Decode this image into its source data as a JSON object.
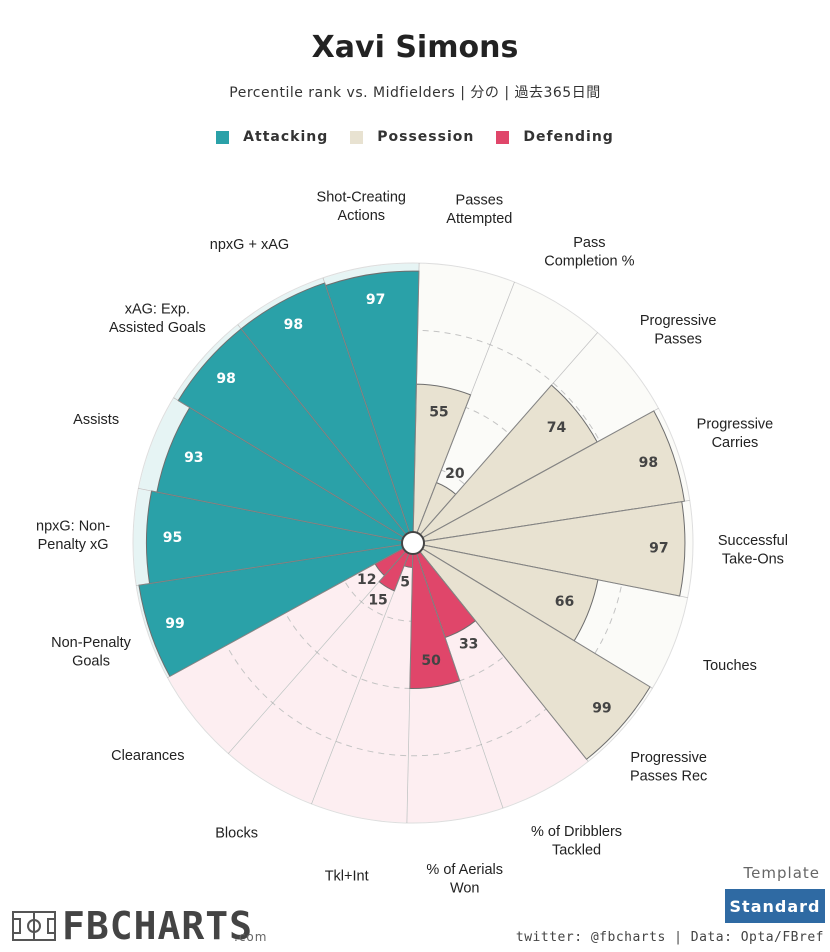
{
  "header": {
    "title": "Xavi Simons",
    "subtitle": "Percentile rank vs. Midfielders | 分の | 過去365日間"
  },
  "legend": [
    {
      "label": "Attacking",
      "color": "#2aa1a8"
    },
    {
      "label": "Possession",
      "color": "#e8e2d1"
    },
    {
      "label": "Defending",
      "color": "#e0466a"
    }
  ],
  "chart_data": {
    "type": "polar-bar",
    "title": "Xavi Simons",
    "range": [
      0,
      100
    ],
    "categories": [
      {
        "label": "Shot-Creating\nActions",
        "value": 97,
        "group": "Attacking"
      },
      {
        "label": "Passes\nAttempted",
        "value": 55,
        "group": "Possession"
      },
      {
        "label": "Pass\nCompletion %",
        "value": 20,
        "group": "Possession"
      },
      {
        "label": "Progressive\nPasses",
        "value": 74,
        "group": "Possession"
      },
      {
        "label": "Progressive\nCarries",
        "value": 98,
        "group": "Possession"
      },
      {
        "label": "Successful\nTake-Ons",
        "value": 97,
        "group": "Possession"
      },
      {
        "label": "Touches",
        "value": 66,
        "group": "Possession"
      },
      {
        "label": "Progressive\nPasses Rec",
        "value": 99,
        "group": "Possession"
      },
      {
        "label": "% of Dribblers\nTackled",
        "value": 33,
        "group": "Defending"
      },
      {
        "label": "% of Aerials\nWon",
        "value": 50,
        "group": "Defending"
      },
      {
        "label": "Tkl+Int",
        "value": 5,
        "group": "Defending"
      },
      {
        "label": "Blocks",
        "value": 15,
        "group": "Defending"
      },
      {
        "label": "Clearances",
        "value": 12,
        "group": "Defending"
      },
      {
        "label": "Non-Penalty\nGoals",
        "value": 99,
        "group": "Attacking"
      },
      {
        "label": "npxG: Non-\nPenalty xG",
        "value": 95,
        "group": "Attacking"
      },
      {
        "label": "Assists",
        "value": 93,
        "group": "Attacking"
      },
      {
        "label": "xAG: Exp.\nAssisted Goals",
        "value": 98,
        "group": "Attacking"
      },
      {
        "label": "npxG + xAG",
        "value": 98,
        "group": "Attacking"
      }
    ],
    "colors": {
      "Attacking": {
        "fill": "#2aa1a8",
        "bg": "#e6f4f4",
        "text": "#ffffff"
      },
      "Possession": {
        "fill": "#e8e2d1",
        "bg": "#fbfbf8",
        "text": "#444444"
      },
      "Defending": {
        "fill": "#e0466a",
        "bg": "#fdeef1",
        "text": "#444444"
      }
    }
  },
  "footer": {
    "brand": "FBCHARTS",
    "brand_suffix": ".com",
    "template_label": "Template",
    "template_value": "Standard",
    "credit": "twitter: @fbcharts | Data: Opta/FBref"
  }
}
